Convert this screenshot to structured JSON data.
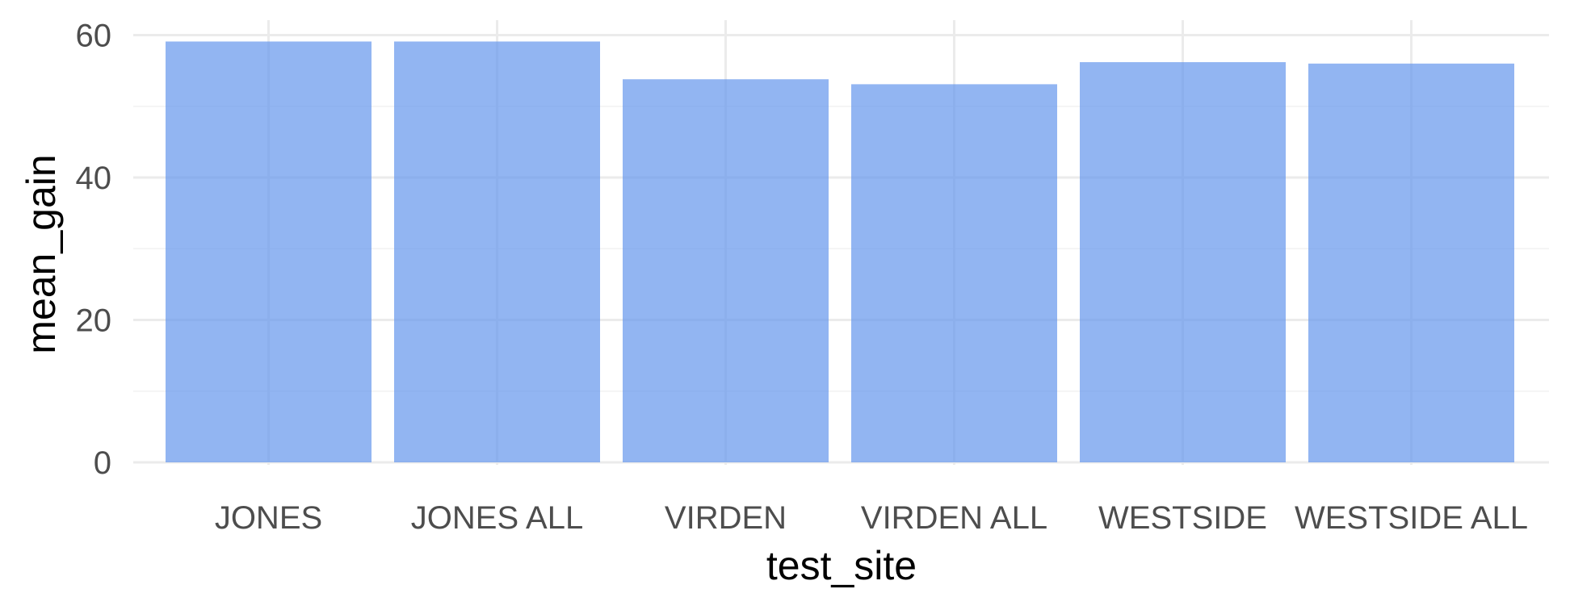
{
  "chart_data": {
    "type": "bar",
    "title": "",
    "xlabel": "test_site",
    "ylabel": "mean_gain",
    "categories": [
      "JONES",
      "JONES ALL",
      "VIRDEN",
      "VIRDEN ALL",
      "WESTSIDE",
      "WESTSIDE ALL"
    ],
    "values": [
      59.1,
      59.1,
      53.8,
      53.1,
      56.2,
      56.0
    ],
    "ylim": [
      0,
      63
    ],
    "yticks": [
      0,
      20,
      40,
      60
    ],
    "ytick_labels": [
      "0",
      "20",
      "40",
      "60"
    ],
    "grid": true,
    "legend": "none",
    "bar_color": "#6495ED"
  }
}
